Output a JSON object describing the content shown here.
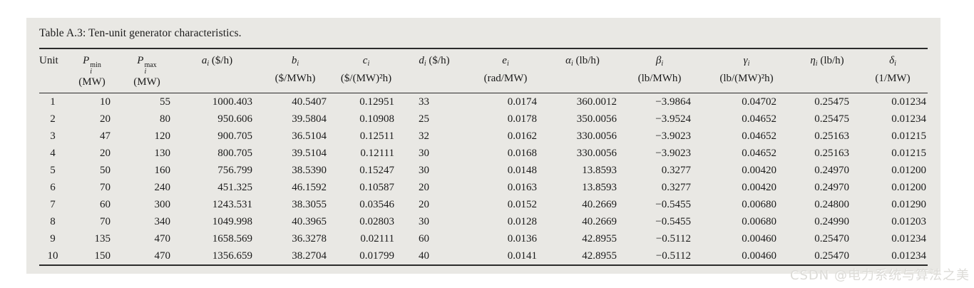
{
  "caption": "Table A.3: Ten-unit generator characteristics.",
  "watermark": "CSDN @电力系统与算法之美",
  "colors": {
    "panel_bg": "#e9e8e4",
    "text": "#1b1b1b",
    "rule": "#2c2c2c",
    "watermark": "#dcdbd7"
  },
  "table": {
    "columns": [
      {
        "key": "unit",
        "label": "Unit"
      },
      {
        "key": "pmin",
        "sym": "P",
        "sub": "i",
        "sup": "min",
        "unit": "(MW)"
      },
      {
        "key": "pmax",
        "sym": "P",
        "sub": "i",
        "sup": "max",
        "unit": "(MW)"
      },
      {
        "key": "a",
        "sym": "a",
        "sub": "i",
        "unit": "($/h)",
        "inline_unit": true
      },
      {
        "key": "b",
        "sym": "b",
        "sub": "i",
        "unit": "($/MWh)"
      },
      {
        "key": "c",
        "sym": "c",
        "sub": "i",
        "unit": "($/(MW)²h)"
      },
      {
        "key": "d",
        "sym": "d",
        "sub": "i",
        "unit": "($/h)",
        "inline_unit": true
      },
      {
        "key": "e",
        "sym": "e",
        "sub": "i",
        "unit": "(rad/MW)"
      },
      {
        "key": "alpha",
        "sym": "α",
        "sub": "i",
        "unit": "(lb/h)",
        "inline_unit": true
      },
      {
        "key": "beta",
        "sym": "β",
        "sub": "i",
        "unit": "(lb/MWh)"
      },
      {
        "key": "gamma",
        "sym": "γ",
        "sub": "i",
        "unit": "(lb/(MW)²h)"
      },
      {
        "key": "eta",
        "sym": "η",
        "sub": "i",
        "unit": "(lb/h)",
        "inline_unit": true
      },
      {
        "key": "delta",
        "sym": "δ",
        "sub": "i",
        "unit": "(1/MW)"
      }
    ],
    "rows": [
      [
        "1",
        "10",
        "55",
        "1000.403",
        "40.5407",
        "0.12951",
        "33",
        "0.0174",
        "360.0012",
        "−3.9864",
        "0.04702",
        "0.25475",
        "0.01234"
      ],
      [
        "2",
        "20",
        "80",
        "950.606",
        "39.5804",
        "0.10908",
        "25",
        "0.0178",
        "350.0056",
        "−3.9524",
        "0.04652",
        "0.25475",
        "0.01234"
      ],
      [
        "3",
        "47",
        "120",
        "900.705",
        "36.5104",
        "0.12511",
        "32",
        "0.0162",
        "330.0056",
        "−3.9023",
        "0.04652",
        "0.25163",
        "0.01215"
      ],
      [
        "4",
        "20",
        "130",
        "800.705",
        "39.5104",
        "0.12111",
        "30",
        "0.0168",
        "330.0056",
        "−3.9023",
        "0.04652",
        "0.25163",
        "0.01215"
      ],
      [
        "5",
        "50",
        "160",
        "756.799",
        "38.5390",
        "0.15247",
        "30",
        "0.0148",
        "13.8593",
        "0.3277",
        "0.00420",
        "0.24970",
        "0.01200"
      ],
      [
        "6",
        "70",
        "240",
        "451.325",
        "46.1592",
        "0.10587",
        "20",
        "0.0163",
        "13.8593",
        "0.3277",
        "0.00420",
        "0.24970",
        "0.01200"
      ],
      [
        "7",
        "60",
        "300",
        "1243.531",
        "38.3055",
        "0.03546",
        "20",
        "0.0152",
        "40.2669",
        "−0.5455",
        "0.00680",
        "0.24800",
        "0.01290"
      ],
      [
        "8",
        "70",
        "340",
        "1049.998",
        "40.3965",
        "0.02803",
        "30",
        "0.0128",
        "40.2669",
        "−0.5455",
        "0.00680",
        "0.24990",
        "0.01203"
      ],
      [
        "9",
        "135",
        "470",
        "1658.569",
        "36.3278",
        "0.02111",
        "60",
        "0.0136",
        "42.8955",
        "−0.5112",
        "0.00460",
        "0.25470",
        "0.01234"
      ],
      [
        "10",
        "150",
        "470",
        "1356.659",
        "38.2704",
        "0.01799",
        "40",
        "0.0141",
        "42.8955",
        "−0.5112",
        "0.00460",
        "0.25470",
        "0.01234"
      ]
    ]
  }
}
